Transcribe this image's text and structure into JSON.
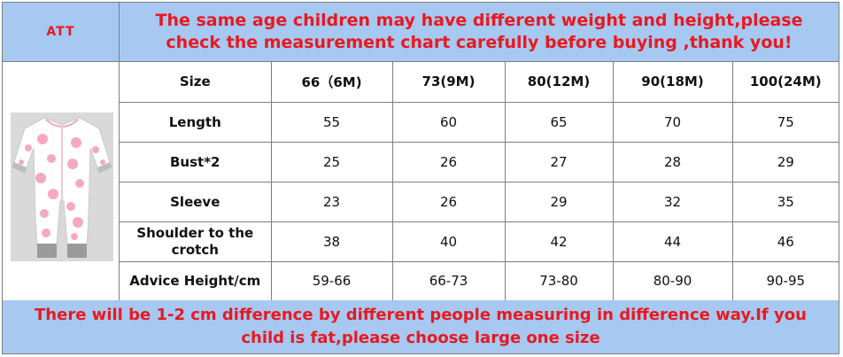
{
  "header": {
    "brand": "ATT",
    "notice": "The same age children may have different weight and height,please check the measurement chart carefully before buying ,thank you!"
  },
  "product_image": {
    "icon": "baby-romper-icon",
    "colors": {
      "fabric": "#ffffff",
      "print": "#f28fae",
      "cuff": "#9a9a9a"
    }
  },
  "size_table": {
    "row_header": "Size",
    "columns": [
      "66（6M)",
      "73(9M)",
      "80(12M)",
      "90(18M)",
      "100(24M)"
    ],
    "rows": [
      {
        "label": "Length",
        "values": [
          "55",
          "60",
          "65",
          "70",
          "75"
        ]
      },
      {
        "label": "Bust*2",
        "values": [
          "25",
          "26",
          "27",
          "28",
          "29"
        ]
      },
      {
        "label": "Sleeve",
        "values": [
          "23",
          "26",
          "29",
          "32",
          "35"
        ]
      },
      {
        "label": "Shoulder to the crotch",
        "values": [
          "38",
          "40",
          "42",
          "44",
          "46"
        ]
      },
      {
        "label": "Advice Height/cm",
        "values": [
          "59-66",
          "66-73",
          "73-80",
          "80-90",
          "90-95"
        ]
      }
    ]
  },
  "footer": {
    "notice": "There will be 1-2 cm difference by different people measuring in difference way.If you child is fat,please choose large one size"
  },
  "colors": {
    "banner": "#a6c8f1",
    "alert_text": "#e8191f",
    "grid": "#7f7f7f"
  }
}
